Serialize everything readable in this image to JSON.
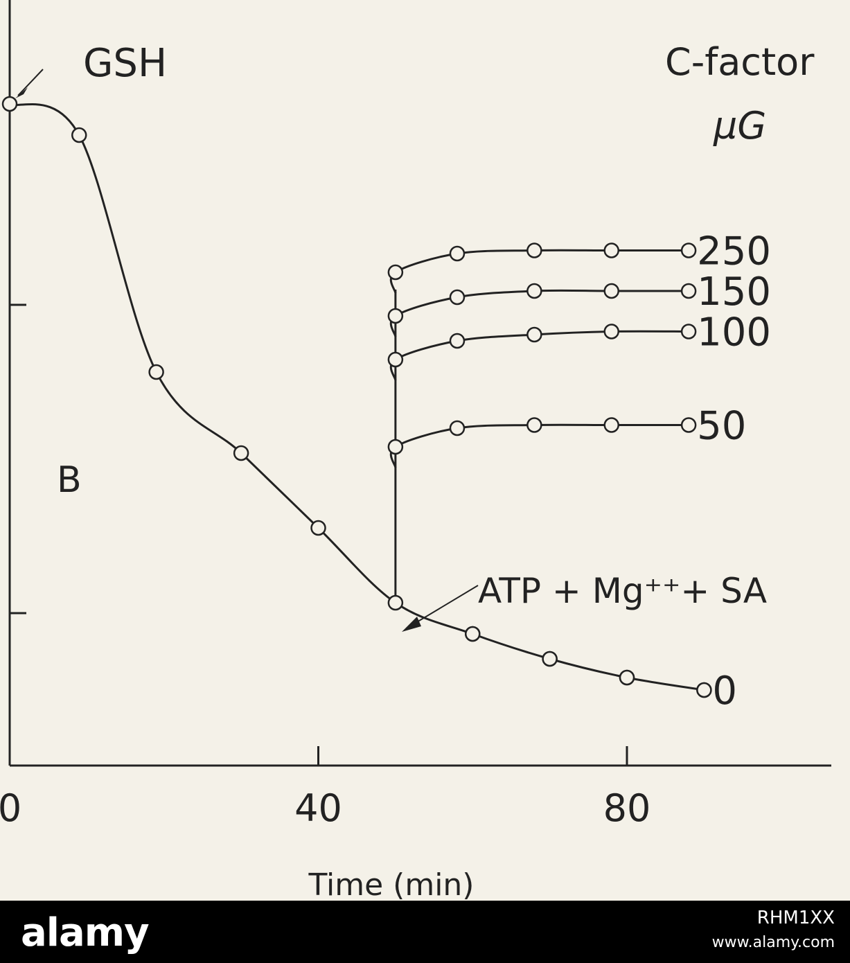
{
  "chart_data": {
    "type": "line",
    "xlabel": "Time (min)",
    "ylabel": "",
    "xlim": [
      0,
      100
    ],
    "ylim": [
      0,
      100
    ],
    "x_ticks": [
      "0",
      "40",
      "80"
    ],
    "x_tick_values": [
      0,
      40,
      80
    ],
    "grid": false,
    "legend_title_line1": "C-factor",
    "legend_title_line2": "µG",
    "annotations": {
      "gsh": "GSH",
      "atp": "ATP + Mg⁺⁺+ SA",
      "panel": "B"
    },
    "main_curve": {
      "x": [
        0,
        9,
        19,
        30,
        40,
        50,
        60,
        70,
        80,
        90
      ],
      "y": [
        100,
        95,
        57,
        44,
        32,
        20,
        15,
        11,
        8,
        6
      ]
    },
    "series": [
      {
        "name": "250",
        "x": [
          50,
          58,
          68,
          78,
          88
        ],
        "y": [
          73,
          76,
          76.5,
          76.5,
          76.5
        ]
      },
      {
        "name": "150",
        "x": [
          50,
          58,
          68,
          78,
          88
        ],
        "y": [
          66,
          69,
          70,
          70,
          70
        ]
      },
      {
        "name": "100",
        "x": [
          50,
          58,
          68,
          78,
          88
        ],
        "y": [
          59,
          62,
          63,
          63.5,
          63.5
        ]
      },
      {
        "name": "50",
        "x": [
          50,
          58,
          68,
          78,
          88
        ],
        "y": [
          45,
          48,
          48.5,
          48.5,
          48.5
        ]
      },
      {
        "name": "0",
        "x": [
          50,
          60,
          70,
          80,
          90
        ],
        "y": [
          20,
          15,
          11,
          8,
          6
        ]
      }
    ]
  },
  "footer": {
    "brand": "alamy",
    "code": "RHM1XX",
    "url": "www.alamy.com"
  },
  "colors": {
    "background": "#f4f1e8",
    "ink": "#222222",
    "footer": "#000000"
  }
}
